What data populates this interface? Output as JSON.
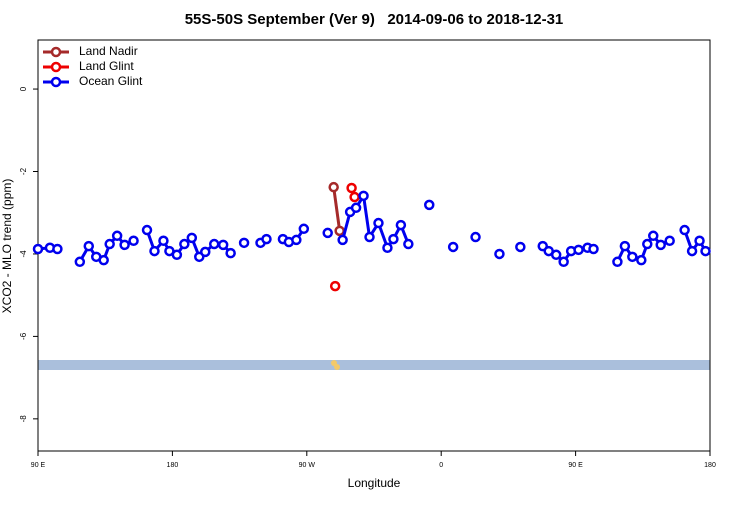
{
  "chart_data": {
    "type": "line",
    "title": "55S-50S September (Ver 9)   2014-09-06 to 2018-12-31",
    "xlabel": "Longitude",
    "ylabel": "XCO2 - MLO trend (ppm)",
    "xlim": [
      90,
      540
    ],
    "xticks": [
      {
        "value": 90,
        "label": "90 E"
      },
      180,
      {
        "value": 270,
        "label": "90 W"
      },
      {
        "value": 360,
        "label": "0"
      },
      {
        "value": 450,
        "label": "90 E"
      },
      {
        "value": 540,
        "label": "180"
      }
    ],
    "ylim": [
      -8.78,
      1.19
    ],
    "yticks": [
      0,
      -2,
      -4,
      -6,
      -8
    ],
    "legend": "top-left",
    "series": [
      {
        "name": "Land Nadir",
        "color": "#a52a2a",
        "x": [
          288,
          292
        ],
        "values": [
          -2.38,
          -3.44
        ]
      },
      {
        "name": "Land Glint",
        "color": "#ee0000",
        "x": [
          289,
          null,
          300,
          302
        ],
        "values": [
          -4.78,
          null,
          -2.4,
          -2.62
        ]
      },
      {
        "name": "Ocean Glint",
        "color": "#0000ee",
        "x": [
          90,
          98,
          103,
          null,
          118,
          124,
          129,
          134,
          138,
          143,
          148,
          154,
          null,
          163,
          168,
          174,
          178,
          183,
          188,
          193,
          198,
          202,
          208,
          214,
          219,
          null,
          228,
          null,
          239,
          243,
          null,
          254,
          258,
          263,
          268,
          null,
          284,
          null,
          294,
          299,
          303,
          308,
          312,
          318,
          324,
          328,
          333,
          338,
          null,
          352,
          null,
          368,
          null,
          383,
          null,
          399,
          null,
          413,
          null,
          428,
          432,
          437,
          442,
          447,
          452,
          458,
          462,
          null,
          478,
          483,
          488,
          494,
          498,
          502,
          507,
          513,
          null,
          523,
          528,
          533,
          537
        ],
        "values": [
          -3.88,
          -3.85,
          -3.88,
          null,
          -4.19,
          -3.81,
          -4.07,
          -4.15,
          -3.76,
          -3.56,
          -3.78,
          -3.68,
          null,
          -3.42,
          -3.93,
          -3.68,
          -3.93,
          -4.02,
          -3.76,
          -3.61,
          -4.07,
          -3.95,
          -3.76,
          -3.78,
          -3.98,
          null,
          -3.73,
          null,
          -3.73,
          -3.64,
          null,
          -3.64,
          -3.71,
          -3.66,
          -3.39,
          null,
          -3.49,
          null,
          -3.66,
          -2.98,
          -2.88,
          -2.59,
          -3.59,
          -3.25,
          -3.85,
          -3.64,
          -3.3,
          -3.76,
          null,
          -2.81,
          null,
          -3.83,
          null,
          -3.59,
          null,
          -4.0,
          null,
          -3.83,
          null,
          -3.81,
          -3.93,
          -4.02,
          -4.19,
          -3.93,
          -3.9,
          -3.85,
          -3.88,
          null,
          -4.19,
          -3.81,
          -4.07,
          -4.15,
          -3.76,
          -3.56,
          -3.78,
          -3.68,
          null,
          -3.42,
          -3.93,
          -3.68,
          -3.93
        ]
      }
    ]
  }
}
